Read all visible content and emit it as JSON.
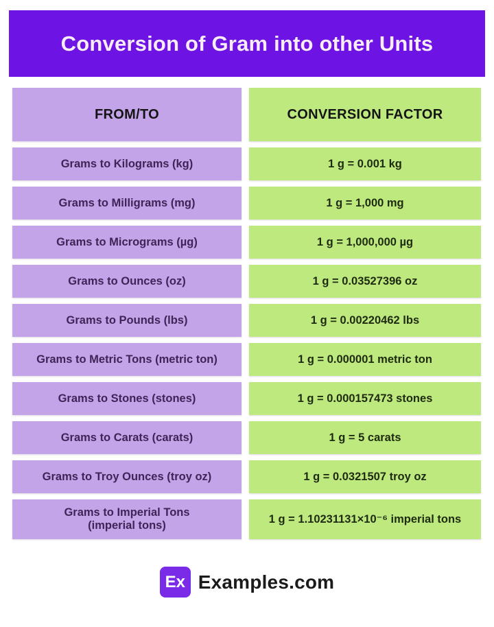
{
  "title": "Conversion of Gram into other Units",
  "colors": {
    "banner_purple": "#6d13e3",
    "cell_purple": "#c3a4e9",
    "cell_green": "#bee97e",
    "label_text_purple": "#3f2457",
    "value_text_green": "#1e2b10",
    "logo_purple": "#7a2be8"
  },
  "table": {
    "headers": [
      "FROM/TO",
      "CONVERSION FACTOR"
    ],
    "rows": [
      {
        "label": "Grams to Kilograms (kg)",
        "value": "1 g = 0.001 kg"
      },
      {
        "label": "Grams to Milligrams (mg)",
        "value": "1 g = 1,000 mg"
      },
      {
        "label": "Grams to Micrograms (µg)",
        "value": "1 g = 1,000,000 µg"
      },
      {
        "label": "Grams to Ounces (oz)",
        "value": "1 g = 0.03527396 oz"
      },
      {
        "label": "Grams to Pounds (lbs)",
        "value": "1 g = 0.00220462 lbs"
      },
      {
        "label": "Grams to Metric Tons (metric ton)",
        "value": "1 g = 0.000001 metric ton"
      },
      {
        "label": "Grams to Stones (stones)",
        "value": "1 g = 0.000157473 stones"
      },
      {
        "label": "Grams to Carats (carats)",
        "value": "1 g = 5 carats"
      },
      {
        "label": "Grams to Troy Ounces (troy oz)",
        "value": "1 g = 0.0321507 troy oz"
      },
      {
        "label": "Grams to Imperial Tons\n(imperial tons)",
        "value": "1 g = 1.10231131×10⁻⁶ imperial tons"
      }
    ]
  },
  "footer": {
    "logo_text": "Ex",
    "brand": "Examples.com"
  }
}
